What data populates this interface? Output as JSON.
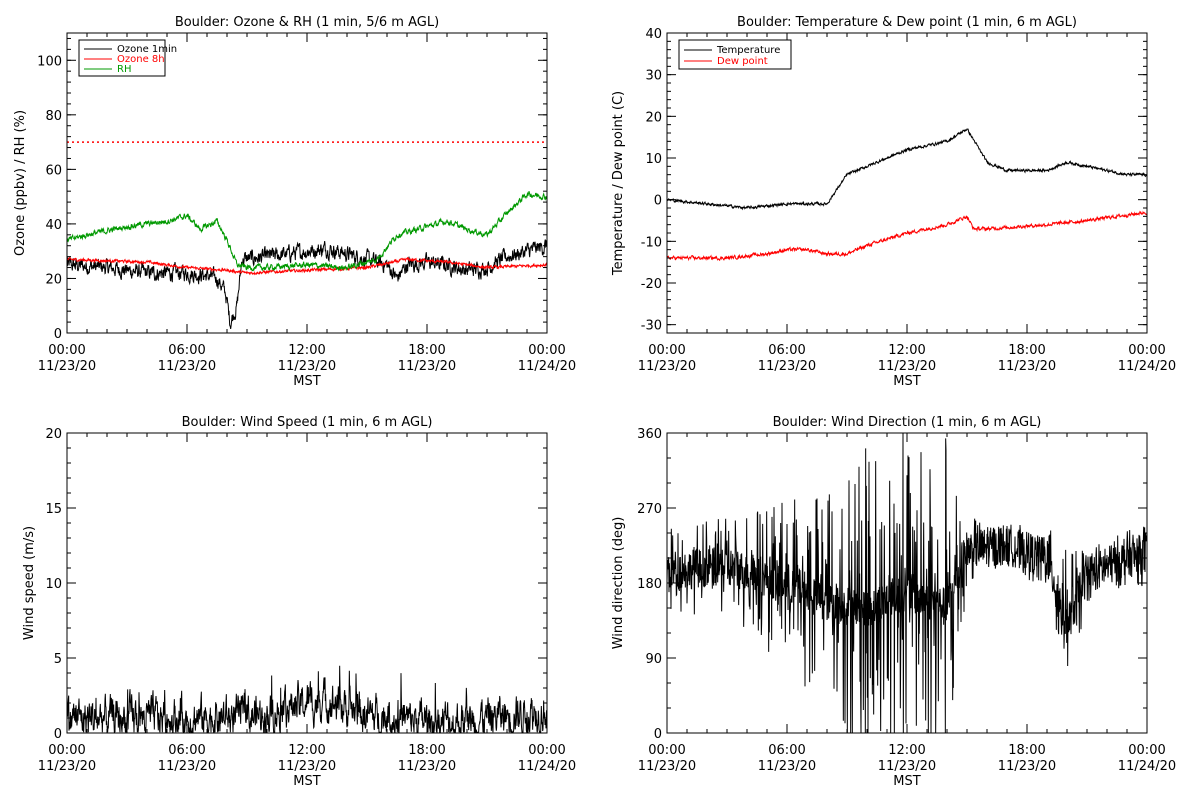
{
  "chart_data": [
    {
      "type": "line",
      "title": "Boulder: Ozone & RH (1 min, 5/6 m AGL)",
      "xlabel": "MST",
      "ylabel": "Ozone (ppbv) / RH (%)",
      "xlim": [
        "11/23/20 00:00",
        "11/24/20 00:00"
      ],
      "ylim": [
        0,
        110
      ],
      "xticks": [
        {
          "time": "00:00",
          "date": "11/23/20"
        },
        {
          "time": "06:00",
          "date": "11/23/20"
        },
        {
          "time": "12:00",
          "date": "11/23/20"
        },
        {
          "time": "18:00",
          "date": "11/23/20"
        },
        {
          "time": "00:00",
          "date": "11/24/20"
        }
      ],
      "yticks": [
        "0",
        "20",
        "40",
        "60",
        "80",
        "100"
      ],
      "ytick_values": [
        0,
        20,
        40,
        60,
        80,
        100
      ],
      "hline": {
        "y": 70,
        "style": "dotted",
        "color": "#ff0000"
      },
      "legend": "top-left",
      "series": [
        {
          "name": "Ozone 1min",
          "color": "#000000",
          "noise": 2.2,
          "x": [
            "11/23/20 00:00",
            "11/23/20 02:00",
            "11/23/20 04:00",
            "11/23/20 06:00",
            "11/23/20 07:00",
            "11/23/20 07:30",
            "11/23/20 07:55",
            "11/23/20 08:10",
            "11/23/20 08:30",
            "11/23/20 08:45",
            "11/23/20 10:00",
            "11/23/20 12:00",
            "11/23/20 13:00",
            "11/23/20 14:00",
            "11/23/20 15:00",
            "11/23/20 16:00",
            "11/23/20 16:30",
            "11/23/20 17:00",
            "11/23/20 18:00",
            "11/23/20 19:00",
            "11/23/20 20:00",
            "11/23/20 21:00",
            "11/23/20 22:00",
            "11/23/20 23:00",
            "11/24/20 00:00"
          ],
          "values": [
            25,
            24,
            22,
            22,
            21,
            20,
            15,
            4,
            10,
            27,
            28,
            30,
            31,
            29,
            27,
            25,
            20,
            25,
            26,
            25,
            23,
            24,
            28,
            30,
            32
          ]
        },
        {
          "name": "Ozone 8h",
          "color": "#ff0000",
          "noise": 0.4,
          "x": [
            "11/23/20 00:00",
            "11/23/20 04:00",
            "11/23/20 06:00",
            "11/23/20 08:00",
            "11/23/20 09:00",
            "11/23/20 12:00",
            "11/23/20 15:00",
            "11/23/20 17:00",
            "11/23/20 19:00",
            "11/23/20 21:00",
            "11/24/20 00:00"
          ],
          "values": [
            27,
            26,
            24,
            23,
            22,
            23,
            24,
            27,
            26,
            24,
            25
          ]
        },
        {
          "name": "RH",
          "color": "#009900",
          "noise": 0.8,
          "x": [
            "11/23/20 00:00",
            "11/23/20 01:00",
            "11/23/20 03:00",
            "11/23/20 05:00",
            "11/23/20 06:00",
            "11/23/20 06:40",
            "11/23/20 07:30",
            "11/23/20 08:00",
            "11/23/20 08:30",
            "11/23/20 09:00",
            "11/23/20 10:00",
            "11/23/20 12:00",
            "11/23/20 14:00",
            "11/23/20 15:30",
            "11/23/20 16:30",
            "11/23/20 18:00",
            "11/23/20 19:00",
            "11/23/20 20:00",
            "11/23/20 21:00",
            "11/23/20 22:00",
            "11/23/20 23:00",
            "11/24/20 00:00"
          ],
          "values": [
            34,
            36,
            39,
            41,
            43,
            38,
            41,
            34,
            25,
            24,
            24,
            25,
            24,
            27,
            36,
            39,
            41,
            38,
            36,
            44,
            51,
            50
          ]
        }
      ]
    },
    {
      "type": "line",
      "title": "Boulder: Temperature & Dew point (1 min, 6 m AGL)",
      "xlabel": "MST",
      "ylabel": "Temperature / Dew point (C)",
      "xlim": [
        "11/23/20 00:00",
        "11/24/20 00:00"
      ],
      "ylim": [
        -32,
        40
      ],
      "xticks": [
        {
          "time": "00:00",
          "date": "11/23/20"
        },
        {
          "time": "06:00",
          "date": "11/23/20"
        },
        {
          "time": "12:00",
          "date": "11/23/20"
        },
        {
          "time": "18:00",
          "date": "11/23/20"
        },
        {
          "time": "00:00",
          "date": "11/24/20"
        }
      ],
      "yticks": [
        "40",
        "30",
        "20",
        "10",
        "0",
        "-10",
        "-20",
        "-30"
      ],
      "ytick_values": [
        40,
        30,
        20,
        10,
        0,
        -10,
        -20,
        -30
      ],
      "legend": "top-left",
      "series": [
        {
          "name": "Temperature",
          "color": "#000000",
          "noise": 0.25,
          "x": [
            "11/23/20 00:00",
            "11/23/20 02:00",
            "11/23/20 04:00",
            "11/23/20 06:00",
            "11/23/20 08:00",
            "11/23/20 09:00",
            "11/23/20 10:00",
            "11/23/20 12:00",
            "11/23/20 14:00",
            "11/23/20 15:00",
            "11/23/20 15:30",
            "11/23/20 16:00",
            "11/23/20 17:00",
            "11/23/20 18:00",
            "11/23/20 19:00",
            "11/23/20 20:00",
            "11/23/20 21:00",
            "11/23/20 22:00",
            "11/23/20 23:00",
            "11/24/20 00:00"
          ],
          "values": [
            0,
            -1,
            -2,
            -1,
            -1,
            6,
            8,
            12,
            14,
            17,
            13,
            9,
            7,
            7,
            7,
            9,
            8,
            7,
            6,
            6
          ]
        },
        {
          "name": "Dew point",
          "color": "#ff0000",
          "noise": 0.3,
          "x": [
            "11/23/20 00:00",
            "11/23/20 03:00",
            "11/23/20 05:00",
            "11/23/20 06:00",
            "11/23/20 07:00",
            "11/23/20 08:00",
            "11/23/20 09:00",
            "11/23/20 10:00",
            "11/23/20 12:00",
            "11/23/20 14:00",
            "11/23/20 15:00",
            "11/23/20 15:20",
            "11/23/20 16:00",
            "11/23/20 19:00",
            "11/23/20 21:00",
            "11/24/20 00:00"
          ],
          "values": [
            -14,
            -14,
            -13,
            -12,
            -12,
            -13,
            -13,
            -11,
            -8,
            -6,
            -4,
            -7,
            -7,
            -6,
            -5,
            -3
          ]
        }
      ]
    },
    {
      "type": "line",
      "title": "Boulder: Wind Speed (1 min, 6 m AGL)",
      "xlabel": "MST",
      "ylabel": "Wind speed (m/s)",
      "xlim": [
        "11/23/20 00:00",
        "11/24/20 00:00"
      ],
      "ylim": [
        0,
        20
      ],
      "xticks": [
        {
          "time": "00:00",
          "date": "11/23/20"
        },
        {
          "time": "06:00",
          "date": "11/23/20"
        },
        {
          "time": "12:00",
          "date": "11/23/20"
        },
        {
          "time": "18:00",
          "date": "11/23/20"
        },
        {
          "time": "00:00",
          "date": "11/24/20"
        }
      ],
      "yticks": [
        "0",
        "5",
        "10",
        "15",
        "20"
      ],
      "ytick_values": [
        0,
        5,
        10,
        15,
        20
      ],
      "series": [
        {
          "color": "#000000",
          "noise": 1.0,
          "x": [
            "11/23/20 00:00",
            "11/23/20 04:00",
            "11/23/20 08:00",
            "11/23/20 10:00",
            "11/23/20 12:00",
            "11/23/20 13:00",
            "11/23/20 14:00",
            "11/23/20 15:00",
            "11/23/20 16:00",
            "11/23/20 18:00",
            "11/23/20 20:00",
            "11/23/20 22:00",
            "11/24/20 00:00"
          ],
          "values": [
            1.0,
            1.0,
            1.0,
            1.3,
            2.0,
            2.2,
            1.7,
            1.2,
            1.0,
            0.8,
            0.8,
            1.2,
            1.5
          ]
        }
      ]
    },
    {
      "type": "line",
      "title": "Boulder: Wind Direction (1 min, 6 m AGL)",
      "xlabel": "MST",
      "ylabel": "Wind direction (deg)",
      "xlim": [
        "11/23/20 00:00",
        "11/24/20 00:00"
      ],
      "ylim": [
        0,
        360
      ],
      "xticks": [
        {
          "time": "00:00",
          "date": "11/23/20"
        },
        {
          "time": "06:00",
          "date": "11/23/20"
        },
        {
          "time": "12:00",
          "date": "11/23/20"
        },
        {
          "time": "18:00",
          "date": "11/23/20"
        },
        {
          "time": "00:00",
          "date": "11/24/20"
        }
      ],
      "yticks": [
        "0",
        "90",
        "180",
        "270",
        "360"
      ],
      "ytick_values": [
        0,
        90,
        180,
        270,
        360
      ],
      "series": [
        {
          "color": "#000000",
          "noise": 40,
          "x": [
            "11/23/20 00:00",
            "11/23/20 03:00",
            "11/23/20 06:00",
            "11/23/20 08:00",
            "11/23/20 10:00",
            "11/23/20 12:00",
            "11/23/20 14:00",
            "11/23/20 15:00",
            "11/23/20 17:00",
            "11/23/20 19:00",
            "11/23/20 20:00",
            "11/23/20 21:00",
            "11/23/20 23:00",
            "11/24/20 00:00"
          ],
          "values": [
            195,
            200,
            180,
            160,
            150,
            170,
            150,
            220,
            225,
            210,
            130,
            190,
            210,
            215
          ],
          "spread": [
            40,
            45,
            80,
            100,
            150,
            170,
            160,
            30,
            20,
            30,
            70,
            25,
            25,
            30
          ]
        }
      ]
    }
  ]
}
